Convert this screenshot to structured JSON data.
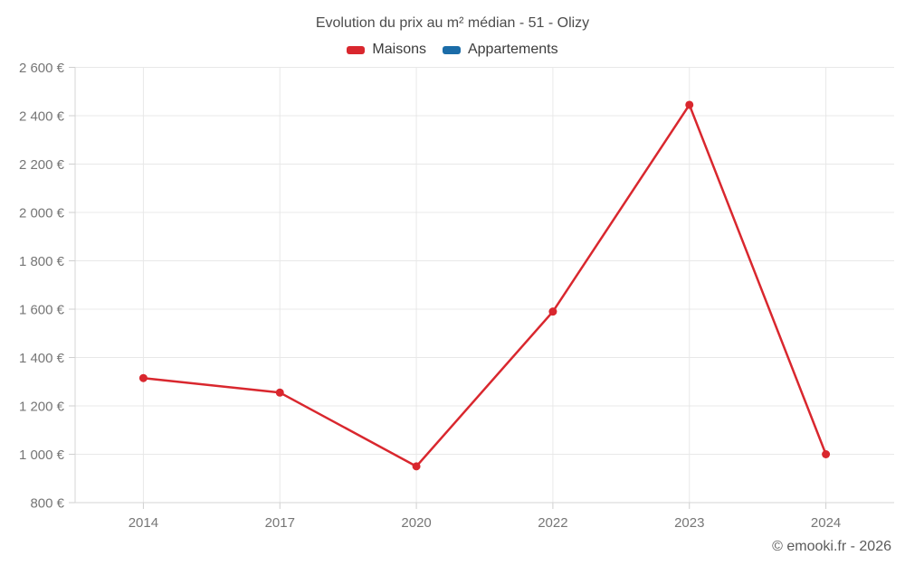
{
  "chart_data": {
    "type": "line",
    "title": "Evolution du prix au m² médian - 51 - Olizy",
    "categories": [
      "2014",
      "2017",
      "2020",
      "2022",
      "2023",
      "2024"
    ],
    "series": [
      {
        "name": "Maisons",
        "color": "#d9272e",
        "values": [
          1315,
          1255,
          950,
          1590,
          2445,
          1000
        ]
      },
      {
        "name": "Appartements",
        "color": "#1b6ca8",
        "values": []
      }
    ],
    "ylim": [
      800,
      2600
    ],
    "ytick_step": 200,
    "y_tick_labels": [
      "800 €",
      "1 000 €",
      "1 200 €",
      "1 400 €",
      "1 600 €",
      "1 800 €",
      "2 000 €",
      "2 200 €",
      "2 400 €",
      "2 600 €"
    ],
    "xlabel": "",
    "ylabel": "",
    "grid": true,
    "legend_position": "top",
    "currency": "€"
  },
  "footer": {
    "credit": "© emooki.fr - 2026"
  },
  "colors": {
    "grid": "#e8e8e8",
    "axis": "#d4d4d4",
    "tick": "#cfcfcf",
    "tick_label": "#767676",
    "background": "#ffffff"
  }
}
